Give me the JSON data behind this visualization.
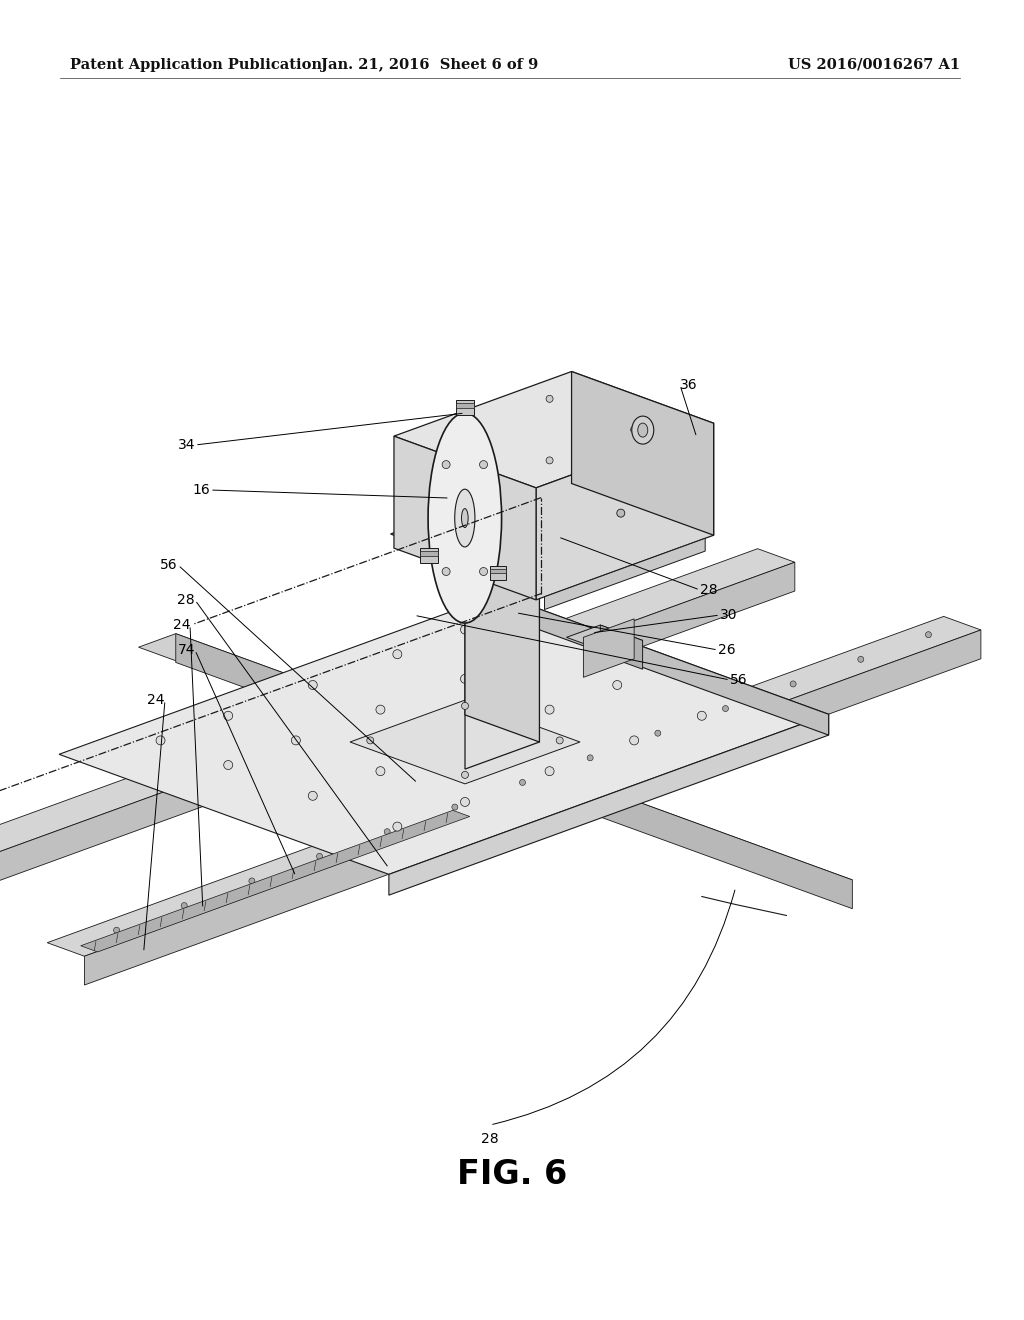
{
  "background_color": "#ffffff",
  "header_left": "Patent Application Publication",
  "header_center": "Jan. 21, 2016  Sheet 6 of 9",
  "header_right": "US 2016/0016267 A1",
  "figure_label": "FIG. 6",
  "page_width": 10.24,
  "page_height": 13.2,
  "header_fontsize": 10.5,
  "figure_label_fontsize": 24,
  "label_fontsize": 10,
  "line_color": "#1a1a1a",
  "fill_light": "#f0f0f0",
  "fill_mid": "#d8d8d8",
  "fill_dark": "#c0c0c0",
  "fill_darker": "#a8a8a8"
}
